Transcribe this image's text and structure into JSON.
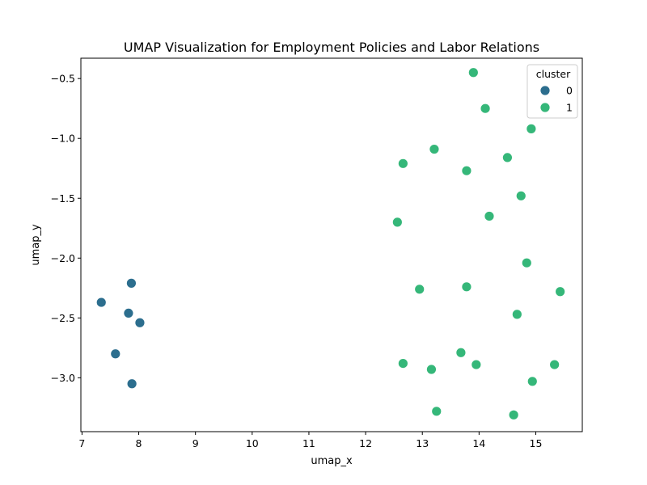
{
  "chart_data": {
    "type": "scatter",
    "title": "UMAP Visualization for Employment Policies and Labor Relations",
    "xlabel": "umap_x",
    "ylabel": "umap_y",
    "xlim": [
      6.98,
      15.82
    ],
    "ylim": [
      -3.45,
      -0.33
    ],
    "xticks": [
      7,
      8,
      9,
      10,
      11,
      12,
      13,
      14,
      15
    ],
    "yticks": [
      -0.5,
      -1.0,
      -1.5,
      -2.0,
      -2.5,
      -3.0
    ],
    "xtick_labels": [
      "7",
      "8",
      "9",
      "10",
      "11",
      "12",
      "13",
      "14",
      "15"
    ],
    "ytick_labels": [
      "−0.5",
      "−1.0",
      "−1.5",
      "−2.0",
      "−2.5",
      "−3.0"
    ],
    "grid": false,
    "legend": {
      "title": "cluster",
      "position": "top-right"
    },
    "series": [
      {
        "name": "0",
        "color": "#2c6e8e",
        "points": [
          [
            7.34,
            -2.37
          ],
          [
            7.87,
            -2.21
          ],
          [
            7.82,
            -2.46
          ],
          [
            8.02,
            -2.54
          ],
          [
            7.59,
            -2.8
          ],
          [
            7.88,
            -3.05
          ]
        ]
      },
      {
        "name": "1",
        "color": "#35b779",
        "points": [
          [
            13.9,
            -0.45
          ],
          [
            14.11,
            -0.75
          ],
          [
            14.92,
            -0.92
          ],
          [
            13.21,
            -1.09
          ],
          [
            14.5,
            -1.16
          ],
          [
            12.66,
            -1.21
          ],
          [
            13.78,
            -1.27
          ],
          [
            14.74,
            -1.48
          ],
          [
            14.18,
            -1.65
          ],
          [
            12.56,
            -1.7
          ],
          [
            14.84,
            -2.04
          ],
          [
            12.95,
            -2.26
          ],
          [
            13.78,
            -2.24
          ],
          [
            15.43,
            -2.28
          ],
          [
            14.67,
            -2.47
          ],
          [
            13.68,
            -2.79
          ],
          [
            12.66,
            -2.88
          ],
          [
            13.95,
            -2.89
          ],
          [
            15.33,
            -2.89
          ],
          [
            13.16,
            -2.93
          ],
          [
            14.94,
            -3.03
          ],
          [
            13.25,
            -3.28
          ],
          [
            14.61,
            -3.31
          ]
        ]
      }
    ]
  }
}
